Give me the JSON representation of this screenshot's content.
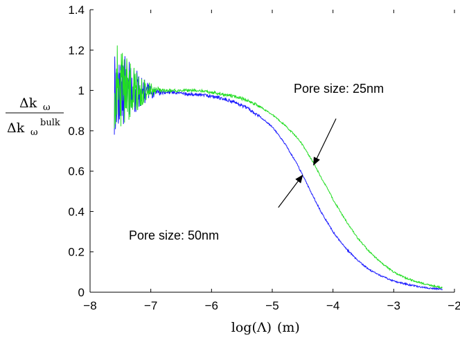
{
  "chart_data": {
    "type": "line",
    "xlabel_main": "log(Λ)",
    "xlabel_unit": "(m)",
    "ylabel": {
      "numerator": "Δk",
      "numerator_sub": "ω",
      "denominator": "Δk",
      "denominator_sub": "ω",
      "denominator_sup": "bulk"
    },
    "xlim": [
      -8,
      -2
    ],
    "ylim": [
      0,
      1.4
    ],
    "x_ticks": [
      "−8",
      "−7",
      "−6",
      "−5",
      "−4",
      "−3",
      "−2"
    ],
    "y_ticks": [
      "0",
      "0.2",
      "0.4",
      "0.6",
      "0.8",
      "1",
      "1.2",
      "1.4"
    ],
    "grid": false,
    "series": [
      {
        "color": "#1a1aff",
        "x": [
          -7.6,
          -7.4,
          -7.2,
          -7.0,
          -6.8,
          -6.6,
          -6.4,
          -6.2,
          -6.0,
          -5.8,
          -5.6,
          -5.4,
          -5.2,
          -5.0,
          -4.9,
          -4.8,
          -4.7,
          -4.6,
          -4.5,
          -4.4,
          -4.3,
          -4.2,
          -4.1,
          -4.0,
          -3.8,
          -3.6,
          -3.4,
          -3.2,
          -3.0,
          -2.8,
          -2.6,
          -2.4,
          -2.2
        ],
        "y": [
          1.0,
          1.0,
          1.0,
          0.99,
          0.99,
          0.99,
          0.98,
          0.98,
          0.97,
          0.96,
          0.94,
          0.91,
          0.87,
          0.82,
          0.78,
          0.74,
          0.69,
          0.64,
          0.58,
          0.52,
          0.46,
          0.4,
          0.35,
          0.3,
          0.22,
          0.16,
          0.11,
          0.08,
          0.055,
          0.04,
          0.028,
          0.02,
          0.015
        ]
      },
      {
        "color": "#22dd22",
        "x": [
          -7.6,
          -7.4,
          -7.2,
          -7.0,
          -6.8,
          -6.6,
          -6.4,
          -6.2,
          -6.0,
          -5.8,
          -5.6,
          -5.4,
          -5.2,
          -5.0,
          -4.8,
          -4.6,
          -4.5,
          -4.4,
          -4.3,
          -4.2,
          -4.1,
          -4.0,
          -3.9,
          -3.8,
          -3.6,
          -3.4,
          -3.2,
          -3.0,
          -2.8,
          -2.6,
          -2.4,
          -2.2
        ],
        "y": [
          1.0,
          1.0,
          1.0,
          1.0,
          1.0,
          1.0,
          1.0,
          1.0,
          0.99,
          0.98,
          0.97,
          0.95,
          0.92,
          0.88,
          0.83,
          0.77,
          0.73,
          0.68,
          0.63,
          0.57,
          0.52,
          0.46,
          0.41,
          0.36,
          0.27,
          0.2,
          0.145,
          0.1,
          0.07,
          0.05,
          0.035,
          0.022
        ]
      }
    ],
    "noise_region": {
      "x_end": -6.8,
      "amplitude_start": 0.25
    },
    "annotations": [
      {
        "text": "Pore size: 25nm",
        "target": [
          -4.32,
          0.63
        ],
        "from": [
          -3.95,
          0.86
        ]
      },
      {
        "text": "Pore size: 50nm",
        "target": [
          -4.5,
          0.58
        ],
        "from": [
          -4.9,
          0.42
        ]
      }
    ]
  }
}
